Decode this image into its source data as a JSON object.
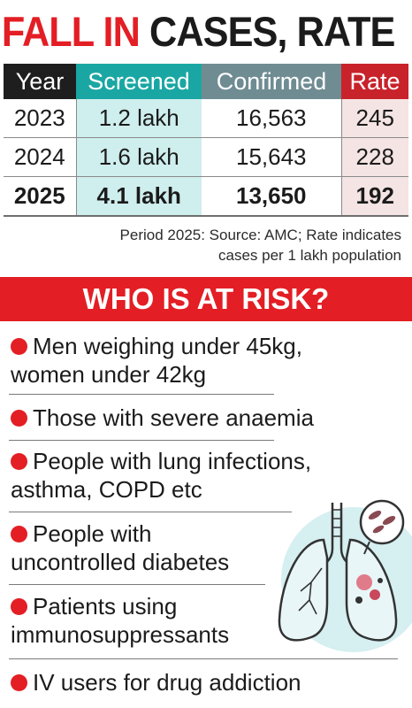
{
  "title": {
    "part1": "FALL IN",
    "part2": "CASES, RATE"
  },
  "table": {
    "headers": [
      "Year",
      "Screened",
      "Confirmed",
      "Rate"
    ],
    "rows": [
      [
        "2023",
        "1.2 lakh",
        "16,563",
        "245"
      ],
      [
        "2024",
        "1.6 lakh",
        "15,643",
        "228"
      ],
      [
        "2025",
        "4.1 lakh",
        "13,650",
        "192"
      ]
    ]
  },
  "note": {
    "line1": "Period 2025: Source: AMC; Rate indicates",
    "line2": "cases per 1 lakh population"
  },
  "risk": {
    "heading": "WHO IS AT RISK?",
    "items": [
      {
        "line1": "Men weighing under 45kg,",
        "line2": "women under 42kg"
      },
      {
        "line1": "Those with severe anaemia",
        "line2": ""
      },
      {
        "line1": "People with lung infections,",
        "line2": "asthma, COPD etc"
      },
      {
        "line1": "People with",
        "line2": "uncontrolled diabetes"
      },
      {
        "line1": "Patients using",
        "line2": "immunosuppressants"
      },
      {
        "line1": "IV users for drug addiction",
        "line2": ""
      }
    ]
  },
  "colors": {
    "accent_red": "#e31e24",
    "screened_teal": "#1aa7a3",
    "confirmed_grey": "#6f8c93",
    "rate_red": "#c8222a",
    "header_black": "#1e1e1e",
    "illustration_bg": "#d6eff1"
  },
  "illustration": "lungs-icon"
}
